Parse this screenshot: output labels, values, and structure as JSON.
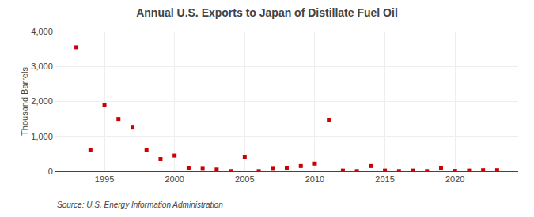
{
  "chart_data": {
    "type": "scatter",
    "title": "Annual U.S. Exports to Japan of Distillate Fuel Oil",
    "ylabel": "Thousand Barrels",
    "source": "Source: U.S. Energy Information Administration",
    "x": [
      1993,
      1994,
      1995,
      1996,
      1997,
      1998,
      1999,
      2000,
      2001,
      2002,
      2003,
      2004,
      2005,
      2006,
      2007,
      2008,
      2009,
      2010,
      2011,
      2012,
      2013,
      2014,
      2015,
      2016,
      2017,
      2018,
      2019,
      2020,
      2021,
      2022,
      2023
    ],
    "values": [
      3550,
      600,
      1900,
      1500,
      1250,
      600,
      350,
      450,
      100,
      70,
      50,
      5,
      400,
      5,
      70,
      100,
      150,
      220,
      1480,
      20,
      5,
      150,
      20,
      5,
      20,
      5,
      100,
      10,
      20,
      30,
      30
    ],
    "color": "#cc0000",
    "marker": "square",
    "xlim": [
      1991.5,
      2024.5
    ],
    "xticks": [
      1995,
      2000,
      2005,
      2010,
      2015,
      2020
    ],
    "ylim": [
      0,
      4000
    ],
    "yticks": [
      0,
      {
        "value": 1000,
        "label": "1,000"
      },
      {
        "value": 2000,
        "label": "2,000"
      },
      {
        "value": 3000,
        "label": "3,000"
      },
      {
        "value": 4000,
        "label": "4,000"
      }
    ],
    "grid": true
  }
}
